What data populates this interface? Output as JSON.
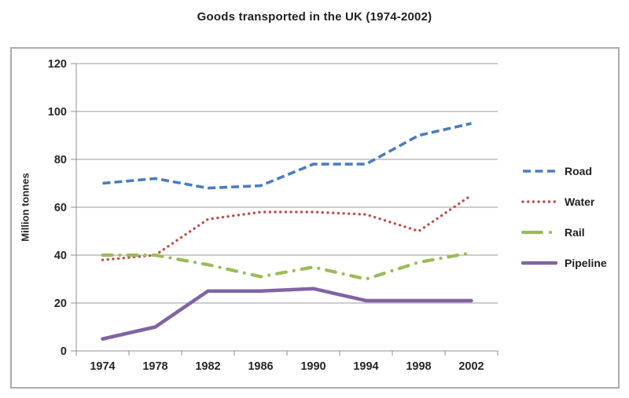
{
  "chart_data": {
    "type": "line",
    "title": "Goods transported in the UK (1974-2002)",
    "xlabel": "",
    "ylabel": "Million tonnes",
    "categories": [
      "1974",
      "1978",
      "1982",
      "1986",
      "1990",
      "1994",
      "1998",
      "2002"
    ],
    "series": [
      {
        "name": "Road",
        "color": "#4a7dc0",
        "style": "dashed",
        "values": [
          70,
          72,
          68,
          69,
          78,
          78,
          90,
          95
        ]
      },
      {
        "name": "Water",
        "color": "#c0504d",
        "style": "dotted",
        "values": [
          38,
          40,
          55,
          58,
          58,
          57,
          50,
          65
        ]
      },
      {
        "name": "Rail",
        "color": "#9bbb59",
        "style": "dashdot",
        "values": [
          40,
          40,
          36,
          31,
          35,
          30,
          37,
          41
        ]
      },
      {
        "name": "Pipeline",
        "color": "#8064a2",
        "style": "solid",
        "values": [
          5,
          10,
          25,
          25,
          26,
          21,
          21,
          21
        ]
      }
    ],
    "ylim": [
      0,
      120
    ],
    "yticks": [
      0,
      20,
      40,
      60,
      80,
      100,
      120
    ],
    "grid": true,
    "legend_position": "right",
    "colors": {
      "gridline": "#9a9a9a",
      "axis": "#8f8f8f",
      "tick_text": "#262626",
      "border": "#ababab"
    }
  }
}
